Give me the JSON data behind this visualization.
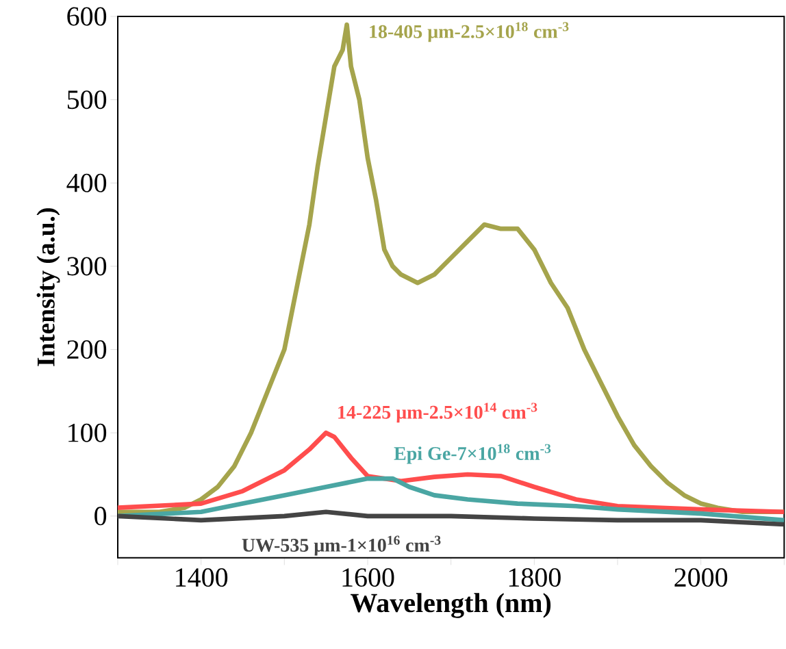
{
  "chart_data": {
    "type": "line",
    "xlabel": "Wavelength (nm)",
    "ylabel": "Intensity (a.u.)",
    "xlim": [
      1300,
      2100
    ],
    "ylim": [
      -50,
      600
    ],
    "xticks": [
      {
        "value": 1300,
        "label": null
      },
      1400,
      {
        "value": 1500,
        "label": null
      },
      1600,
      {
        "value": 1700,
        "label": null
      },
      1800,
      {
        "value": 1900,
        "label": null
      },
      2000,
      {
        "value": 2100,
        "label": null
      }
    ],
    "yticks": [
      0,
      100,
      200,
      300,
      400,
      500,
      600
    ],
    "grid": false,
    "marker": "none",
    "line_style": "solid",
    "x": [
      1300,
      1350,
      1380,
      1400,
      1420,
      1440,
      1460,
      1480,
      1500,
      1510,
      1520,
      1530,
      1540,
      1550,
      1560,
      1570,
      1575,
      1580,
      1590,
      1600,
      1610,
      1620,
      1630,
      1640,
      1660,
      1680,
      1700,
      1720,
      1740,
      1760,
      1780,
      1800,
      1820,
      1840,
      1860,
      1880,
      1900,
      1920,
      1940,
      1960,
      1980,
      2000,
      2020,
      2050,
      2100
    ],
    "series": [
      {
        "name": "18-405 μm-2.5×10$^{18}$ cm$^{-3}$",
        "color": "#a5a44c",
        "values": [
          5,
          5,
          10,
          20,
          35,
          60,
          100,
          150,
          200,
          250,
          300,
          350,
          420,
          480,
          540,
          560,
          590,
          540,
          500,
          430,
          380,
          320,
          300,
          290,
          280,
          290,
          310,
          330,
          350,
          345,
          345,
          320,
          280,
          250,
          200,
          160,
          120,
          85,
          60,
          40,
          25,
          15,
          10,
          5,
          5
        ]
      },
      {
        "name": "14-225 μm-2.5×10$^{14}$ cm$^{-3}$",
        "color": "#ff4d4d",
        "x": [
          1300,
          1400,
          1450,
          1500,
          1530,
          1550,
          1560,
          1580,
          1600,
          1640,
          1680,
          1720,
          1760,
          1800,
          1850,
          1900,
          2000,
          2100
        ],
        "values": [
          10,
          15,
          30,
          55,
          80,
          100,
          95,
          70,
          48,
          42,
          47,
          50,
          48,
          35,
          20,
          12,
          8,
          5
        ]
      },
      {
        "name": "Epi Ge-7×10$^{18}$ cm$^{-3}$",
        "color": "#4aa6a3",
        "x": [
          1300,
          1400,
          1450,
          1500,
          1550,
          1600,
          1630,
          1650,
          1680,
          1720,
          1780,
          1850,
          1900,
          2000,
          2100
        ],
        "values": [
          0,
          5,
          15,
          25,
          35,
          45,
          45,
          35,
          25,
          20,
          15,
          12,
          8,
          3,
          -5
        ]
      },
      {
        "name": "UW-535 μm-1×10$^{16}$ cm$^{-3}$",
        "color": "#444444",
        "x": [
          1300,
          1400,
          1500,
          1550,
          1600,
          1700,
          1800,
          1900,
          2000,
          2100
        ],
        "values": [
          0,
          -5,
          0,
          5,
          0,
          0,
          -3,
          -5,
          -5,
          -10
        ]
      }
    ]
  }
}
